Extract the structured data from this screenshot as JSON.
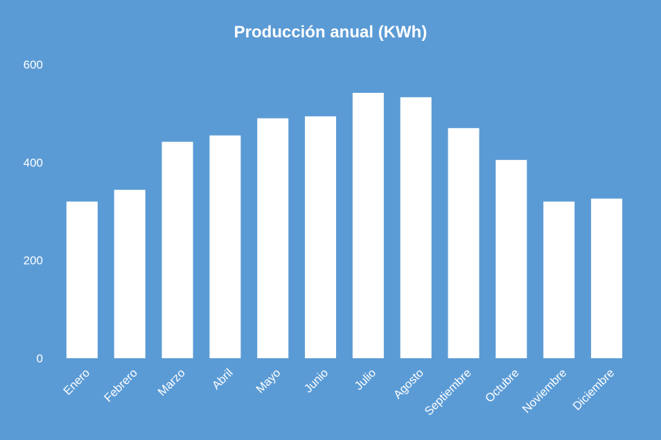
{
  "colors": {
    "background": "#5b9bd5",
    "bar": "#ffffff",
    "text": "#ffffff"
  },
  "chart_data": {
    "type": "bar",
    "title": "Producción anual (KWh)",
    "xlabel": "",
    "ylabel": "",
    "categories": [
      "Enero",
      "Febrero",
      "Marzo",
      "Abril",
      "Mayo",
      "Junio",
      "Julio",
      "Agosto",
      "Septiembre",
      "Octubre",
      "Noviembre",
      "Diciembre"
    ],
    "values": [
      320,
      344,
      442,
      455,
      490,
      494,
      542,
      533,
      470,
      405,
      320,
      326
    ],
    "ylim": [
      0,
      600
    ],
    "yticks": [
      0,
      200,
      400,
      600
    ],
    "grid": false,
    "legend": "none"
  }
}
